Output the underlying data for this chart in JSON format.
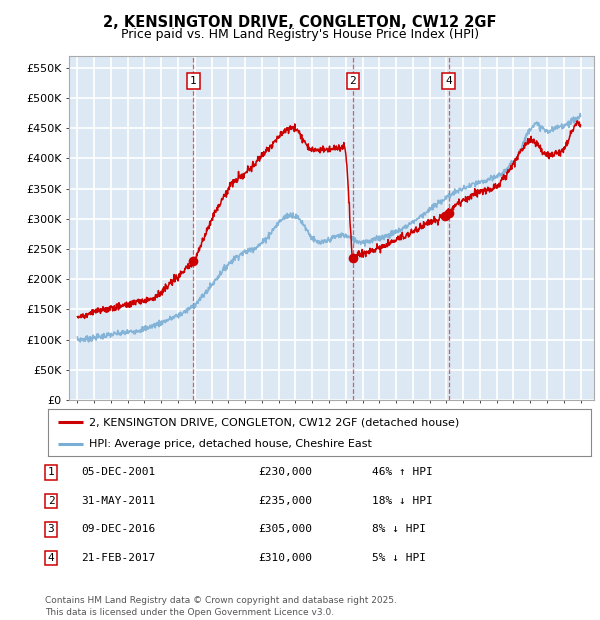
{
  "title": "2, KENSINGTON DRIVE, CONGLETON, CW12 2GF",
  "subtitle": "Price paid vs. HM Land Registry's House Price Index (HPI)",
  "background_color": "#dce9f5",
  "grid_color": "#ffffff",
  "ylim": [
    0,
    570000
  ],
  "yticks": [
    0,
    50000,
    100000,
    150000,
    200000,
    250000,
    300000,
    350000,
    400000,
    450000,
    500000,
    550000
  ],
  "ytick_labels": [
    "£0",
    "£50K",
    "£100K",
    "£150K",
    "£200K",
    "£250K",
    "£300K",
    "£350K",
    "£400K",
    "£450K",
    "£500K",
    "£550K"
  ],
  "sale_t": [
    2001.92,
    2011.42,
    2016.92,
    2017.13
  ],
  "sale_prices": [
    230000,
    235000,
    305000,
    310000
  ],
  "sale_labels": [
    "1",
    "2",
    "3",
    "4"
  ],
  "shown_labels": [
    "1",
    "2",
    "4"
  ],
  "legend_line1": "2, KENSINGTON DRIVE, CONGLETON, CW12 2GF (detached house)",
  "legend_line2": "HPI: Average price, detached house, Cheshire East",
  "table_rows": [
    [
      "1",
      "05-DEC-2001",
      "£230,000",
      "46% ↑ HPI"
    ],
    [
      "2",
      "31-MAY-2011",
      "£235,000",
      "18% ↓ HPI"
    ],
    [
      "3",
      "09-DEC-2016",
      "£305,000",
      "8% ↓ HPI"
    ],
    [
      "4",
      "21-FEB-2017",
      "£310,000",
      "5% ↓ HPI"
    ]
  ],
  "footer": "Contains HM Land Registry data © Crown copyright and database right 2025.\nThis data is licensed under the Open Government Licence v3.0.",
  "red_color": "#cc0000",
  "blue_color": "#7aaed4"
}
